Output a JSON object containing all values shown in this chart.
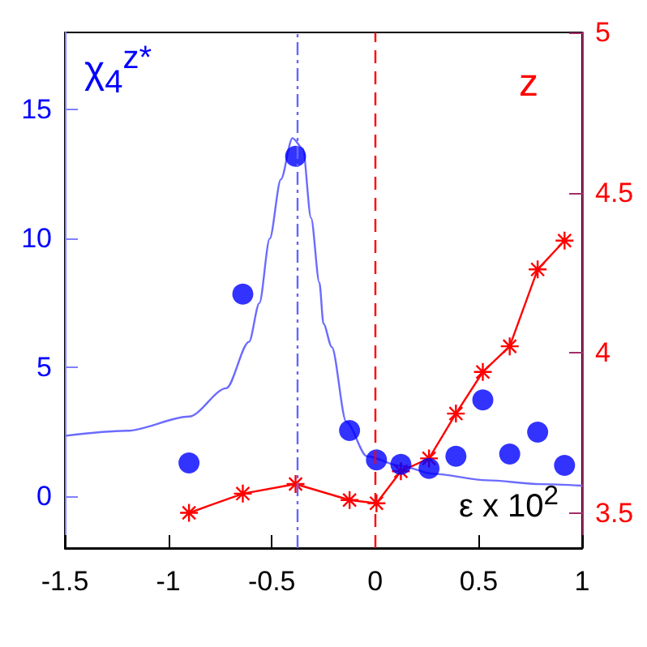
{
  "chart_data": {
    "type": "scatter",
    "xlabel": "ε x 10$^{2}$",
    "ylabel": "χ$_{4}$$^{z*}$",
    "y2label": "z",
    "xlim": [
      -1.5,
      1
    ],
    "xticks": [
      -1.5,
      -1,
      -0.5,
      0,
      0.5,
      1
    ],
    "ylim": [
      -2,
      18
    ],
    "yticks": [
      0,
      5,
      10,
      15
    ],
    "y2lim": [
      3.39,
      5
    ],
    "y2ticks": [
      3.5,
      4,
      4.5,
      5
    ],
    "grid": false,
    "ref_lines": [
      {
        "axis": "x",
        "value": -0.38,
        "color": "#6666ff",
        "line_style": "dashdot"
      },
      {
        "axis": "x",
        "value": 0,
        "color": "#ff0000",
        "line_style": "dashed"
      }
    ],
    "series": [
      {
        "color": "#0000ff",
        "marker": "circle",
        "x": [
          -0.9,
          -0.64,
          -0.385,
          -0.124,
          0.006,
          0.124,
          0.26,
          0.39,
          0.52,
          0.65,
          0.785,
          0.915
        ],
        "values": [
          1.3,
          7.85,
          13.2,
          2.56,
          1.42,
          1.25,
          1.09,
          1.56,
          3.75,
          1.65,
          2.5,
          1.21
        ]
      },
      {
        "type": "line",
        "color": "#6b6bff",
        "marker": "none",
        "line_style": "solid",
        "x": [
          -1.5,
          -1.2,
          -0.9,
          -0.72,
          -0.61,
          -0.56,
          -0.51,
          -0.456,
          -0.4,
          -0.35,
          -0.31,
          -0.27,
          -0.25,
          -0.21,
          -0.14,
          -0.04,
          0.12,
          0.28,
          0.54,
          0.8,
          1
        ],
        "values": [
          2.35,
          2.55,
          3.1,
          4.2,
          6.0,
          7.5,
          10,
          12.3,
          13.9,
          13.5,
          10.8,
          8.3,
          6.7,
          5.8,
          2.9,
          1.56,
          1.19,
          0.88,
          0.63,
          0.48,
          0.42
        ]
      },
      {
        "type": "line",
        "axis": "y2",
        "color": "#ff0000",
        "marker": "cross",
        "line_style": "solid",
        "x": [
          -0.9,
          -0.64,
          -0.385,
          -0.124,
          0.006,
          0.124,
          0.26,
          0.39,
          0.52,
          0.65,
          0.785,
          0.915
        ],
        "values": [
          3.5,
          3.56,
          3.59,
          3.54,
          3.53,
          3.63,
          3.67,
          3.81,
          3.94,
          4.02,
          4.26,
          4.35
        ]
      }
    ]
  }
}
